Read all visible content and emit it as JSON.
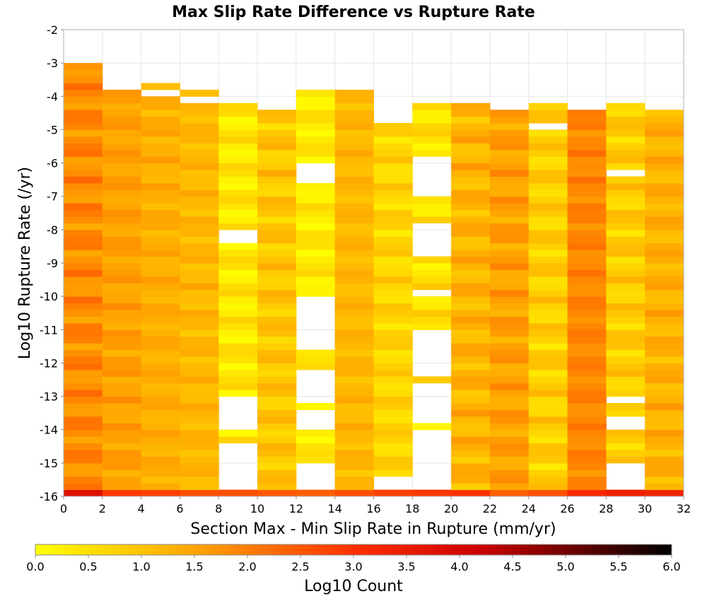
{
  "chart_data": {
    "type": "heatmap",
    "title": "Max Slip Rate Difference vs Rupture Rate",
    "xlabel": "Section Max - Min Slip Rate in Rupture (mm/yr)",
    "ylabel": "Log10 Rupture Rate (/yr)",
    "colorbar_label": "Log10 Count",
    "xlim": [
      0,
      32
    ],
    "ylim": [
      -16,
      -2
    ],
    "x_ticks": [
      "0",
      "2",
      "4",
      "6",
      "8",
      "10",
      "12",
      "14",
      "16",
      "18",
      "20",
      "22",
      "24",
      "26",
      "28",
      "30",
      "32"
    ],
    "y_ticks": [
      "-2",
      "-3",
      "-4",
      "-5",
      "-6",
      "-7",
      "-8",
      "-9",
      "-10",
      "-11",
      "-12",
      "-13",
      "-14",
      "-15",
      "-16"
    ],
    "colorbar_ticks": [
      "0.0",
      "0.5",
      "1.0",
      "1.5",
      "2.0",
      "2.5",
      "3.0",
      "3.5",
      "4.0",
      "4.5",
      "5.0",
      "5.5",
      "6.0"
    ],
    "color_range": [
      0,
      6
    ],
    "colorscale": [
      "#ffff00",
      "#ffa500",
      "#ff3000",
      "#cc0000",
      "#000000"
    ],
    "x_bin_width": 2,
    "y_bin_height": 0.2,
    "y_bin_lower_edges_start": -16,
    "columns": [
      {
        "x0": 0,
        "top": -3.0,
        "base": 1.85,
        "amp": 0.35,
        "ph": 0.0,
        "bottom": 3.8,
        "gaps": []
      },
      {
        "x0": 2,
        "top": -3.8,
        "base": 1.55,
        "amp": 0.2,
        "ph": 1.0,
        "bottom": 2.9,
        "gaps": []
      },
      {
        "x0": 4,
        "top": -3.6,
        "base": 1.35,
        "amp": 0.2,
        "ph": 2.0,
        "bottom": 2.8,
        "gaps": [
          [
            -4.0,
            -3.8
          ]
        ]
      },
      {
        "x0": 6,
        "top": -3.8,
        "base": 1.2,
        "amp": 0.2,
        "ph": 3.0,
        "bottom": 2.6,
        "gaps": [
          [
            -4.2,
            -4.0
          ]
        ]
      },
      {
        "x0": 8,
        "top": -4.1,
        "base": 0.4,
        "amp": 0.35,
        "ph": 4.0,
        "bottom": 2.6,
        "gaps": [
          [
            -8.5,
            -7.9
          ],
          [
            -14.0,
            -13.0
          ],
          [
            -15.8,
            -14.4
          ]
        ]
      },
      {
        "x0": 10,
        "top": -4.4,
        "base": 0.95,
        "amp": 0.35,
        "ph": 5.0,
        "bottom": 2.5,
        "gaps": []
      },
      {
        "x0": 12,
        "top": -3.8,
        "base": 0.35,
        "amp": 0.3,
        "ph": 6.0,
        "bottom": 2.4,
        "gaps": [
          [
            -6.7,
            -5.9
          ],
          [
            -7.5,
            -7.3
          ],
          [
            -9.5,
            -9.3
          ],
          [
            -11.6,
            -10.0
          ],
          [
            -13.2,
            -12.1
          ],
          [
            -14.0,
            -13.4
          ],
          [
            -15.8,
            -15.0
          ]
        ]
      },
      {
        "x0": 14,
        "top": -3.8,
        "base": 1.2,
        "amp": 0.2,
        "ph": 7.0,
        "bottom": 2.6,
        "gaps": []
      },
      {
        "x0": 16,
        "top": -4.7,
        "base": 0.7,
        "amp": 0.3,
        "ph": 8.0,
        "bottom": 2.8,
        "gaps": [
          [
            -15.8,
            -15.3
          ]
        ]
      },
      {
        "x0": 18,
        "top": -4.1,
        "base": 0.5,
        "amp": 0.35,
        "ph": 9.0,
        "bottom": 2.9,
        "gaps": [
          [
            -7.0,
            -5.8
          ],
          [
            -8.8,
            -7.8
          ],
          [
            -10.0,
            -9.8
          ],
          [
            -12.4,
            -11.0
          ],
          [
            -13.9,
            -12.6
          ],
          [
            -15.8,
            -14.0
          ]
        ]
      },
      {
        "x0": 20,
        "top": -4.1,
        "base": 1.25,
        "amp": 0.35,
        "ph": 10.0,
        "bottom": 3.0,
        "gaps": []
      },
      {
        "x0": 22,
        "top": -4.4,
        "base": 1.55,
        "amp": 0.3,
        "ph": 11.0,
        "bottom": 2.4,
        "gaps": []
      },
      {
        "x0": 24,
        "top": -4.1,
        "base": 0.8,
        "amp": 0.35,
        "ph": 12.0,
        "bottom": 2.6,
        "gaps": [
          [
            -5.0,
            -4.8
          ]
        ]
      },
      {
        "x0": 26,
        "top": -4.4,
        "base": 1.9,
        "amp": 0.2,
        "ph": 13.0,
        "bottom": 3.2,
        "gaps": []
      },
      {
        "x0": 28,
        "top": -4.1,
        "base": 0.85,
        "amp": 0.35,
        "ph": 14.0,
        "bottom": 3.4,
        "gaps": [
          [
            -6.4,
            -6.2
          ],
          [
            -13.2,
            -12.9
          ],
          [
            -14.1,
            -13.6
          ],
          [
            -15.8,
            -15.0
          ]
        ]
      },
      {
        "x0": 30,
        "top": -4.4,
        "base": 1.3,
        "amp": 0.3,
        "ph": 15.0,
        "bottom": 3.3,
        "gaps": []
      }
    ]
  }
}
